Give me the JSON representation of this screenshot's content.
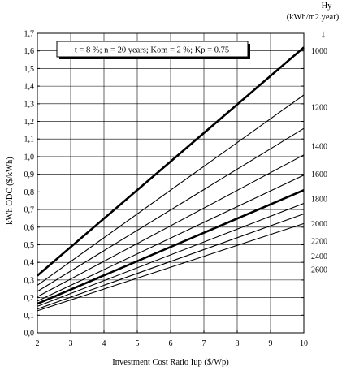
{
  "chart_data": {
    "type": "line",
    "annotation": "t = 8 %; n = 20 years; Kom = 2 %; Kp = 0.75",
    "xlabel": "Investment Cost Ratio Iup ($/Wp)",
    "ylabel": "kWh ODC ($/kWh)",
    "right_label": {
      "line1": "Hy",
      "line2": "(kWh/m2.year)"
    },
    "right_arrow": "↓",
    "xlim": [
      2,
      10
    ],
    "ylim": [
      0,
      1.7
    ],
    "x_ticks": [
      "2",
      "3",
      "4",
      "5",
      "6",
      "7",
      "8",
      "9",
      "10"
    ],
    "y_ticks": [
      "0,0",
      "0,1",
      "0,2",
      "0,3",
      "0,4",
      "0,5",
      "0,6",
      "0,7",
      "0,8",
      "0,9",
      "1,0",
      "1,1",
      "1,2",
      "1,3",
      "1,4",
      "1,5",
      "1,6",
      "1,7"
    ],
    "grid": true,
    "x": [
      2,
      10
    ],
    "series": [
      {
        "name": "1000",
        "values": [
          0.325,
          1.62
        ],
        "bold": true
      },
      {
        "name": "1200",
        "values": [
          0.27,
          1.35
        ],
        "bold": false
      },
      {
        "name": "1400",
        "values": [
          0.235,
          1.16
        ],
        "bold": false
      },
      {
        "name": "1600",
        "values": [
          0.205,
          1.01
        ],
        "bold": false
      },
      {
        "name": "1800",
        "values": [
          0.18,
          0.895
        ],
        "bold": false
      },
      {
        "name": "2000",
        "values": [
          0.165,
          0.81
        ],
        "bold": true
      },
      {
        "name": "2200",
        "values": [
          0.15,
          0.735
        ],
        "bold": false
      },
      {
        "name": "2400",
        "values": [
          0.135,
          0.675
        ],
        "bold": false
      },
      {
        "name": "2600",
        "values": [
          0.125,
          0.62
        ],
        "bold": false
      }
    ],
    "label_y": [
      1.6,
      1.28,
      1.06,
      0.9,
      0.76,
      0.62,
      0.52,
      0.435,
      0.36
    ]
  }
}
